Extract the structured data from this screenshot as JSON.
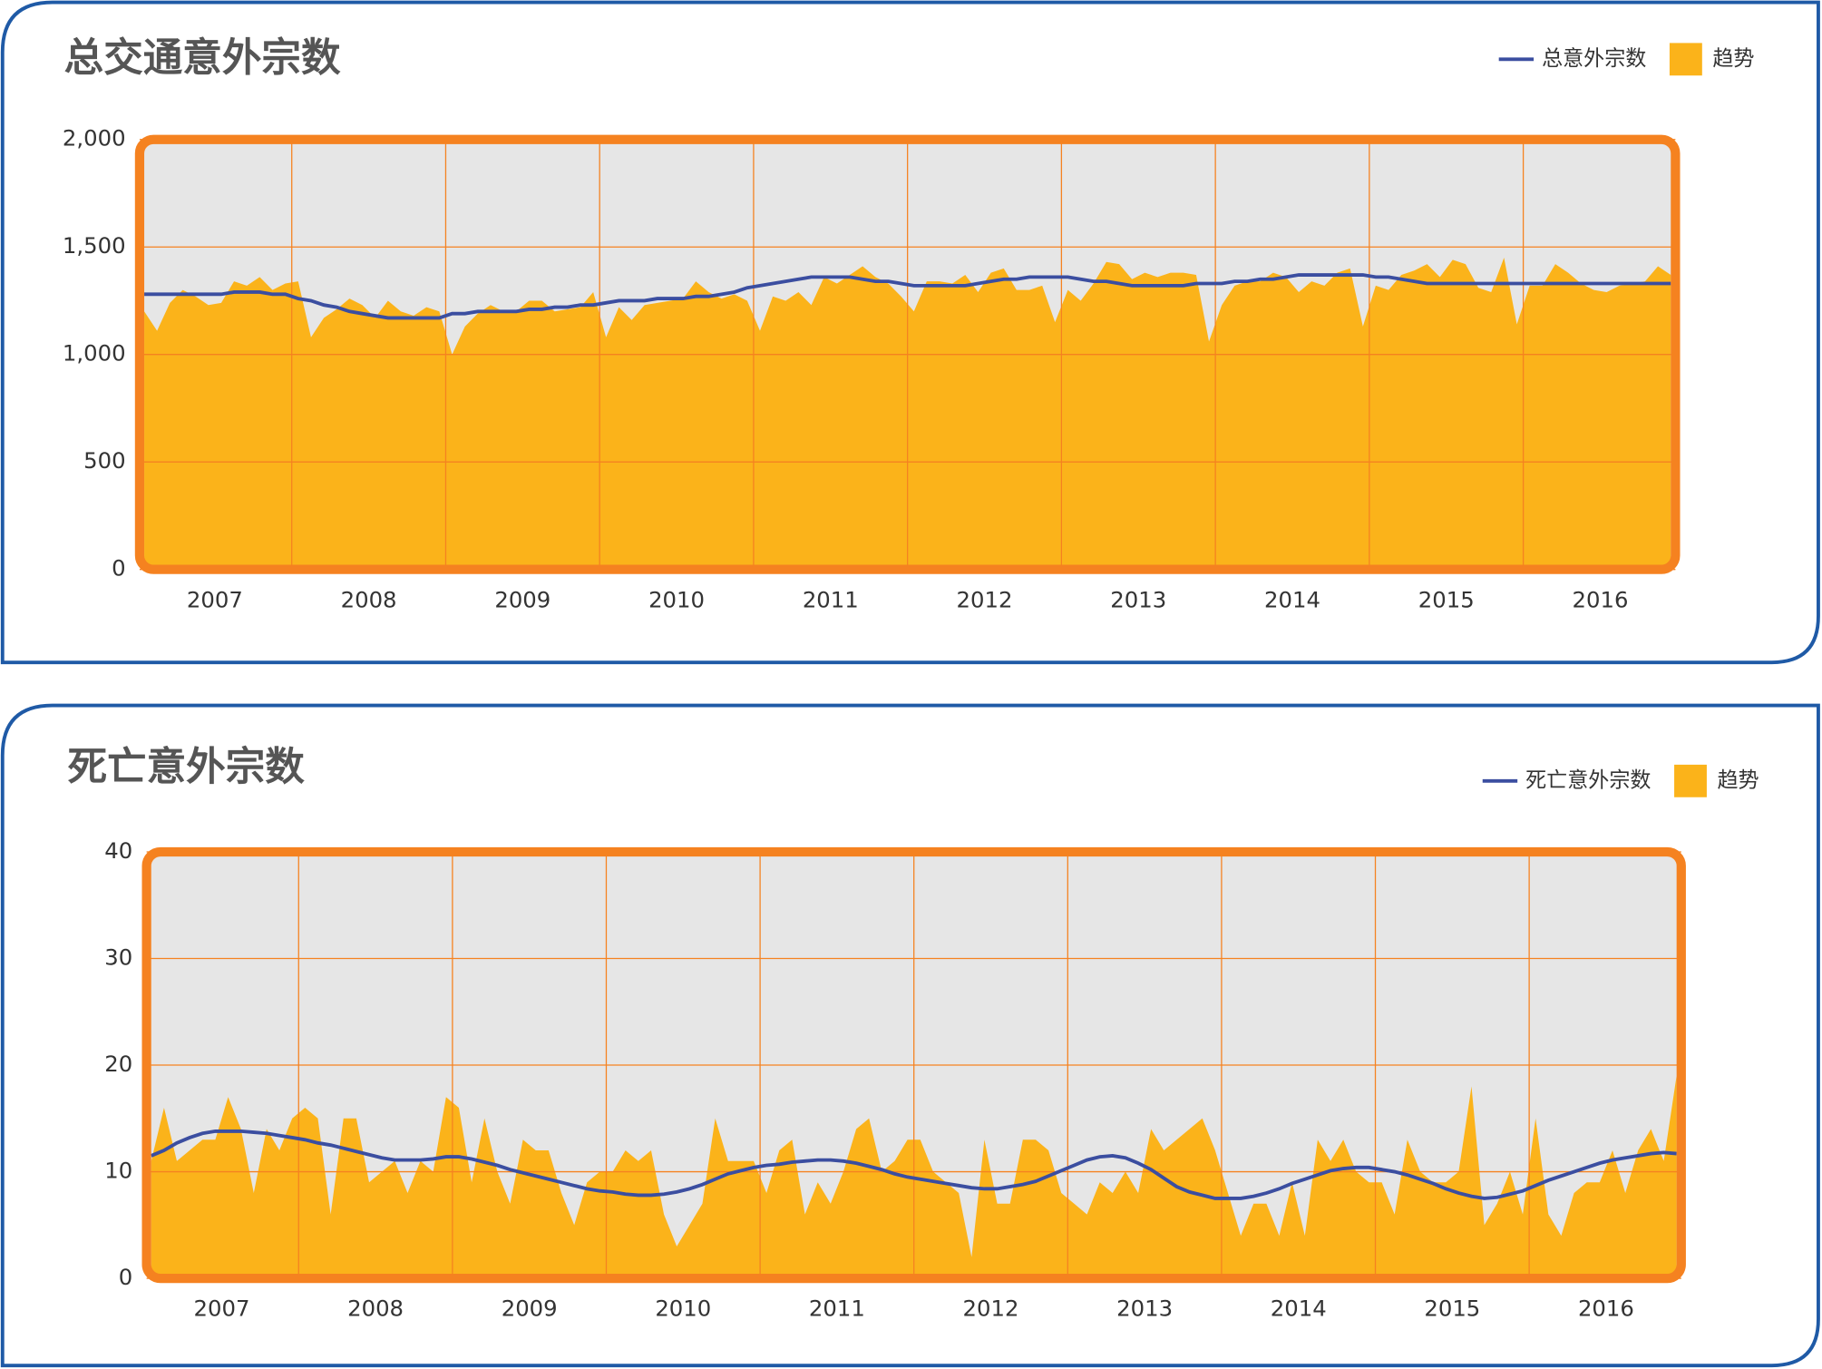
{
  "chart_data": [
    {
      "type": "area",
      "title": "总交通意外宗数",
      "categories": [
        null,
        null,
        null,
        null,
        null,
        null,
        "2007",
        null,
        null,
        null,
        null,
        null,
        null,
        null,
        null,
        null,
        null,
        null,
        "2008",
        null,
        null,
        null,
        null,
        null,
        null,
        null,
        null,
        null,
        null,
        null,
        "2009",
        null,
        null,
        null,
        null,
        null,
        null,
        null,
        null,
        null,
        null,
        null,
        "2010",
        null,
        null,
        null,
        null,
        null,
        null,
        null,
        null,
        null,
        null,
        null,
        "2011",
        null,
        null,
        null,
        null,
        null,
        null,
        null,
        null,
        null,
        null,
        null,
        "2012",
        null,
        null,
        null,
        null,
        null,
        null,
        null,
        null,
        null,
        null,
        null,
        "2013",
        null,
        null,
        null,
        null,
        null,
        null,
        null,
        null,
        null,
        null,
        null,
        "2014",
        null,
        null,
        null,
        null,
        null,
        null,
        null,
        null,
        null,
        null,
        null,
        "2015",
        null,
        null,
        null,
        null,
        null,
        null,
        null,
        null,
        null,
        null,
        null,
        "2016",
        null,
        null,
        null,
        null,
        null
      ],
      "series": [
        {
          "name": "总意外宗数",
          "kind": "line",
          "color": "#3b4ea0",
          "values": [
            1280,
            1280,
            1280,
            1280,
            1280,
            1280,
            1280,
            1290,
            1290,
            1290,
            1280,
            1280,
            1260,
            1250,
            1230,
            1220,
            1200,
            1190,
            1180,
            1170,
            1170,
            1170,
            1170,
            1170,
            1190,
            1190,
            1200,
            1200,
            1200,
            1200,
            1210,
            1210,
            1220,
            1220,
            1230,
            1230,
            1240,
            1250,
            1250,
            1250,
            1260,
            1260,
            1260,
            1270,
            1270,
            1280,
            1290,
            1310,
            1320,
            1330,
            1340,
            1350,
            1360,
            1360,
            1360,
            1360,
            1350,
            1340,
            1340,
            1330,
            1320,
            1320,
            1320,
            1320,
            1320,
            1330,
            1340,
            1350,
            1350,
            1360,
            1360,
            1360,
            1360,
            1350,
            1340,
            1340,
            1330,
            1320,
            1320,
            1320,
            1320,
            1320,
            1330,
            1330,
            1330,
            1340,
            1340,
            1350,
            1350,
            1360,
            1370,
            1370,
            1370,
            1370,
            1370,
            1370,
            1360,
            1360,
            1350,
            1340,
            1330,
            1330,
            1330,
            1330,
            1330,
            1330,
            1330,
            1330,
            1330,
            1330,
            1330,
            1330,
            1330,
            1330,
            1330,
            1330,
            1330,
            1330,
            1330,
            1330
          ]
        },
        {
          "name": "趋势",
          "kind": "area",
          "color": "#fbb31a",
          "values": [
            1200,
            1110,
            1240,
            1300,
            1270,
            1230,
            1240,
            1340,
            1320,
            1360,
            1300,
            1330,
            1340,
            1080,
            1170,
            1210,
            1260,
            1230,
            1170,
            1250,
            1200,
            1180,
            1220,
            1200,
            1000,
            1130,
            1190,
            1230,
            1200,
            1200,
            1250,
            1250,
            1200,
            1210,
            1220,
            1290,
            1080,
            1220,
            1160,
            1230,
            1240,
            1250,
            1260,
            1340,
            1290,
            1260,
            1280,
            1250,
            1110,
            1270,
            1250,
            1290,
            1230,
            1360,
            1330,
            1370,
            1410,
            1360,
            1330,
            1270,
            1200,
            1340,
            1340,
            1330,
            1370,
            1290,
            1380,
            1400,
            1300,
            1300,
            1320,
            1150,
            1300,
            1250,
            1330,
            1430,
            1420,
            1350,
            1380,
            1360,
            1380,
            1380,
            1370,
            1060,
            1230,
            1320,
            1340,
            1340,
            1380,
            1360,
            1290,
            1340,
            1320,
            1380,
            1400,
            1130,
            1320,
            1300,
            1370,
            1390,
            1420,
            1360,
            1440,
            1420,
            1310,
            1290,
            1450,
            1140,
            1320,
            1320,
            1420,
            1380,
            1330,
            1300,
            1290,
            1320,
            1330,
            1340,
            1410,
            1370
          ]
        }
      ],
      "ylim": [
        0,
        2000
      ],
      "yticks": [
        0,
        500,
        {
          "value": 1000,
          "label": "1,000"
        },
        {
          "value": 1500,
          "label": "1,500"
        },
        {
          "value": 2000,
          "label": "2,000"
        }
      ],
      "grid": true
    },
    {
      "type": "area",
      "title": "死亡意外宗数",
      "categories": [
        null,
        null,
        null,
        null,
        null,
        null,
        "2007",
        null,
        null,
        null,
        null,
        null,
        null,
        null,
        null,
        null,
        null,
        null,
        "2008",
        null,
        null,
        null,
        null,
        null,
        null,
        null,
        null,
        null,
        null,
        null,
        "2009",
        null,
        null,
        null,
        null,
        null,
        null,
        null,
        null,
        null,
        null,
        null,
        "2010",
        null,
        null,
        null,
        null,
        null,
        null,
        null,
        null,
        null,
        null,
        null,
        "2011",
        null,
        null,
        null,
        null,
        null,
        null,
        null,
        null,
        null,
        null,
        null,
        "2012",
        null,
        null,
        null,
        null,
        null,
        null,
        null,
        null,
        null,
        null,
        null,
        "2013",
        null,
        null,
        null,
        null,
        null,
        null,
        null,
        null,
        null,
        null,
        null,
        "2014",
        null,
        null,
        null,
        null,
        null,
        null,
        null,
        null,
        null,
        null,
        null,
        "2015",
        null,
        null,
        null,
        null,
        null,
        null,
        null,
        null,
        null,
        null,
        null,
        "2016",
        null,
        null,
        null,
        null,
        null
      ],
      "series": [
        {
          "name": "死亡意外宗数",
          "kind": "line",
          "color": "#3b4ea0",
          "values": [
            11.5,
            12,
            12.7,
            13.2,
            13.6,
            13.8,
            13.8,
            13.8,
            13.7,
            13.6,
            13.4,
            13.2,
            13,
            12.7,
            12.5,
            12.2,
            11.9,
            11.6,
            11.3,
            11.1,
            11.1,
            11.1,
            11.2,
            11.4,
            11.4,
            11.2,
            10.9,
            10.6,
            10.2,
            9.9,
            9.6,
            9.3,
            9,
            8.7,
            8.4,
            8.2,
            8.1,
            7.9,
            7.8,
            7.8,
            7.9,
            8.1,
            8.4,
            8.8,
            9.3,
            9.8,
            10.1,
            10.4,
            10.6,
            10.7,
            10.9,
            11,
            11.1,
            11.1,
            11,
            10.8,
            10.5,
            10.2,
            9.8,
            9.5,
            9.3,
            9.1,
            8.9,
            8.7,
            8.5,
            8.4,
            8.4,
            8.6,
            8.8,
            9.1,
            9.6,
            10.1,
            10.6,
            11.1,
            11.4,
            11.5,
            11.3,
            10.8,
            10.2,
            9.4,
            8.6,
            8.1,
            7.8,
            7.5,
            7.5,
            7.5,
            7.7,
            8,
            8.4,
            8.9,
            9.3,
            9.7,
            10.1,
            10.3,
            10.4,
            10.4,
            10.2,
            10,
            9.7,
            9.3,
            8.9,
            8.4,
            8,
            7.7,
            7.5,
            7.6,
            7.9,
            8.2,
            8.7,
            9.2,
            9.6,
            10,
            10.4,
            10.8,
            11.1,
            11.3,
            11.5,
            11.7,
            11.8,
            11.7
          ]
        },
        {
          "name": "趋势",
          "kind": "area",
          "color": "#fbb31a",
          "values": [
            11,
            16,
            11,
            12,
            13,
            13,
            17,
            14,
            8,
            14,
            12,
            15,
            16,
            15,
            6,
            15,
            15,
            9,
            10,
            11,
            8,
            11,
            10,
            17,
            16,
            9,
            15,
            10,
            7,
            13,
            12,
            12,
            8,
            5,
            9,
            10,
            10,
            12,
            11,
            12,
            6,
            3,
            5,
            7,
            15,
            11,
            11,
            11,
            8,
            12,
            13,
            6,
            9,
            7,
            10,
            14,
            15,
            10,
            11,
            13,
            13,
            10,
            9,
            8,
            2,
            13,
            7,
            7,
            13,
            13,
            12,
            8,
            7,
            6,
            9,
            8,
            10,
            8,
            14,
            12,
            13,
            14,
            15,
            12,
            8,
            4,
            7,
            7,
            4,
            9,
            4,
            13,
            11,
            13,
            10,
            9,
            9,
            6,
            13,
            10,
            9,
            9,
            10,
            18,
            5,
            7,
            10,
            6,
            15,
            6,
            4,
            8,
            9,
            9,
            12,
            8,
            12,
            14,
            11,
            19
          ]
        }
      ],
      "ylim": [
        0,
        40
      ],
      "yticks": [
        0,
        10,
        20,
        30,
        40
      ],
      "grid": true
    }
  ]
}
